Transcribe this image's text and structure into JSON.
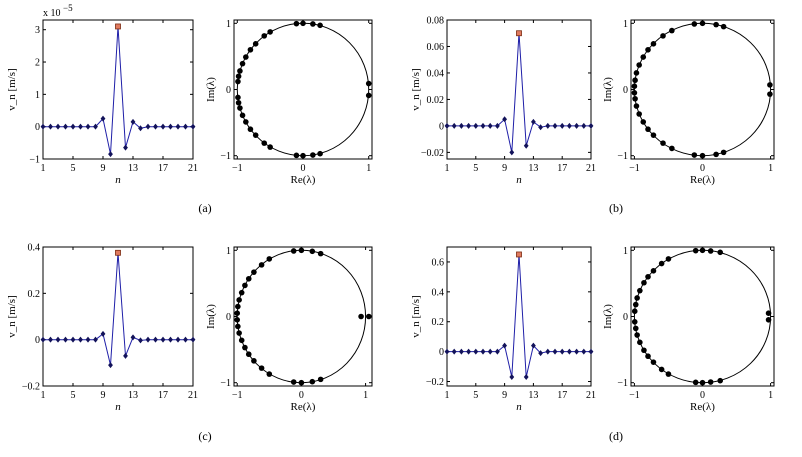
{
  "colors": {
    "line": "#1f1fa8",
    "marker": "#12125a",
    "highlight_fill": "#e07a5f",
    "highlight_edge": "#7a2a10",
    "circle": "#000000",
    "eig": "#000000"
  },
  "chart_data": [
    {
      "panel": "(a)",
      "plots": [
        {
          "type": "line",
          "xlabel": "n",
          "ylabel": "v_n [m/s]",
          "exponent_label": "x 10",
          "exponent_sup": "−5",
          "xlim": [
            1,
            21
          ],
          "ylim": [
            -1,
            3.3
          ],
          "xticks": [
            1,
            5,
            9,
            13,
            17,
            21
          ],
          "yticks": [
            -1,
            0,
            1,
            2,
            3
          ],
          "ytick_labels": [
            "−1",
            "0",
            "1",
            "2",
            "3"
          ],
          "x": [
            1,
            2,
            3,
            4,
            5,
            6,
            7,
            8,
            9,
            10,
            11,
            12,
            13,
            14,
            15,
            16,
            17,
            18,
            19,
            20,
            21
          ],
          "y": [
            0,
            0,
            0,
            0,
            0,
            0,
            0,
            0,
            0.25,
            -0.85,
            3.1,
            -0.65,
            0.15,
            -0.05,
            0,
            0,
            0,
            0,
            0,
            0,
            0
          ],
          "highlight_index": 11
        },
        {
          "type": "scatter",
          "xlabel": "Re(λ)",
          "ylabel": "Im(λ)",
          "xlim": [
            -1.05,
            1.05
          ],
          "ylim": [
            -1.05,
            1.05
          ],
          "xticks": [
            -1,
            0,
            1
          ],
          "yticks": [
            -1,
            0,
            1
          ],
          "tick_labels": [
            "−1",
            "0",
            "1"
          ],
          "unit_circle": true,
          "points": [
            [
              1.0,
              0.09
            ],
            [
              1.0,
              -0.09
            ],
            [
              0.26,
              0.97
            ],
            [
              0.26,
              -0.97
            ],
            [
              0.15,
              0.99
            ],
            [
              0.15,
              -0.99
            ],
            [
              0.0,
              1.0
            ],
            [
              0.0,
              -1.0
            ],
            [
              -0.1,
              0.995
            ],
            [
              -0.1,
              -0.995
            ],
            [
              -0.5,
              0.87
            ],
            [
              -0.5,
              -0.87
            ],
            [
              -0.59,
              0.81
            ],
            [
              -0.59,
              -0.81
            ],
            [
              -0.72,
              0.69
            ],
            [
              -0.72,
              -0.69
            ],
            [
              -0.8,
              0.6
            ],
            [
              -0.8,
              -0.6
            ],
            [
              -0.87,
              0.49
            ],
            [
              -0.87,
              -0.49
            ],
            [
              -0.92,
              0.39
            ],
            [
              -0.92,
              -0.39
            ],
            [
              -0.96,
              0.28
            ],
            [
              -0.96,
              -0.28
            ],
            [
              -0.98,
              0.2
            ],
            [
              -0.98,
              -0.2
            ],
            [
              -0.99,
              0.12
            ],
            [
              -0.99,
              -0.12
            ]
          ]
        }
      ]
    },
    {
      "panel": "(b)",
      "plots": [
        {
          "type": "line",
          "xlabel": "n",
          "ylabel": "v_n [m/s]",
          "xlim": [
            1,
            21
          ],
          "ylim": [
            -0.025,
            0.08
          ],
          "xticks": [
            1,
            5,
            9,
            13,
            17,
            21
          ],
          "yticks": [
            -0.02,
            0,
            0.02,
            0.04,
            0.06,
            0.08
          ],
          "ytick_labels": [
            "−0.02",
            "0",
            "0.02",
            "0.04",
            "0.06",
            "0.08"
          ],
          "x": [
            1,
            2,
            3,
            4,
            5,
            6,
            7,
            8,
            9,
            10,
            11,
            12,
            13,
            14,
            15,
            16,
            17,
            18,
            19,
            20,
            21
          ],
          "y": [
            0,
            0,
            0,
            0,
            0,
            0,
            0,
            0,
            0.005,
            -0.02,
            0.07,
            -0.015,
            0.003,
            -0.001,
            0,
            0,
            0,
            0,
            0,
            0,
            0
          ],
          "highlight_index": 11
        },
        {
          "type": "scatter",
          "xlabel": "Re(λ)",
          "ylabel": "Im(λ)",
          "xlim": [
            -1.05,
            1.05
          ],
          "ylim": [
            -1.05,
            1.05
          ],
          "xticks": [
            -1,
            0,
            1
          ],
          "yticks": [
            -1,
            0,
            1
          ],
          "tick_labels": [
            "−1",
            "0",
            "1"
          ],
          "unit_circle": true,
          "points": [
            [
              0.99,
              0.07
            ],
            [
              0.99,
              -0.07
            ],
            [
              0.31,
              0.95
            ],
            [
              0.31,
              -0.95
            ],
            [
              0.2,
              0.98
            ],
            [
              0.2,
              -0.98
            ],
            [
              0.0,
              1.0
            ],
            [
              0.0,
              -1.0
            ],
            [
              -0.12,
              0.99
            ],
            [
              -0.12,
              -0.99
            ],
            [
              -0.45,
              0.89
            ],
            [
              -0.45,
              -0.89
            ],
            [
              -0.58,
              0.81
            ],
            [
              -0.58,
              -0.81
            ],
            [
              -0.72,
              0.69
            ],
            [
              -0.72,
              -0.69
            ],
            [
              -0.8,
              0.6
            ],
            [
              -0.8,
              -0.6
            ],
            [
              -0.87,
              0.49
            ],
            [
              -0.87,
              -0.49
            ],
            [
              -0.93,
              0.37
            ],
            [
              -0.93,
              -0.37
            ],
            [
              -0.97,
              0.25
            ],
            [
              -0.97,
              -0.25
            ],
            [
              -0.99,
              0.14
            ],
            [
              -0.99,
              -0.14
            ],
            [
              -1.0,
              0.05
            ],
            [
              -1.0,
              -0.05
            ]
          ]
        }
      ]
    },
    {
      "panel": "(c)",
      "plots": [
        {
          "type": "line",
          "xlabel": "n",
          "ylabel": "v_n [m/s]",
          "xlim": [
            1,
            21
          ],
          "ylim": [
            -0.2,
            0.4
          ],
          "xticks": [
            1,
            5,
            9,
            13,
            17,
            21
          ],
          "yticks": [
            -0.2,
            0,
            0.2,
            0.4
          ],
          "ytick_labels": [
            "−0.2",
            "0",
            "0.2",
            "0.4"
          ],
          "x": [
            1,
            2,
            3,
            4,
            5,
            6,
            7,
            8,
            9,
            10,
            11,
            12,
            13,
            14,
            15,
            16,
            17,
            18,
            19,
            20,
            21
          ],
          "y": [
            0,
            0,
            0,
            0,
            0,
            0,
            0,
            0,
            0.025,
            -0.11,
            0.375,
            -0.07,
            0.01,
            -0.003,
            0,
            0,
            0,
            0,
            0,
            0,
            0
          ],
          "highlight_index": 11
        },
        {
          "type": "scatter",
          "xlabel": "Re(λ)",
          "ylabel": "Im(λ)",
          "xlim": [
            -1.05,
            1.1
          ],
          "ylim": [
            -1.05,
            1.05
          ],
          "xticks": [
            -1,
            0,
            1
          ],
          "yticks": [
            -1,
            0,
            1
          ],
          "tick_labels": [
            "−1",
            "0",
            "1"
          ],
          "unit_circle": true,
          "points": [
            [
              0.93,
              0.0
            ],
            [
              1.05,
              0.0
            ],
            [
              0.3,
              0.95
            ],
            [
              0.3,
              -0.95
            ],
            [
              0.17,
              0.985
            ],
            [
              0.17,
              -0.985
            ],
            [
              0.0,
              1.0
            ],
            [
              0.0,
              -1.0
            ],
            [
              -0.12,
              0.99
            ],
            [
              -0.12,
              -0.99
            ],
            [
              -0.5,
              0.87
            ],
            [
              -0.5,
              -0.87
            ],
            [
              -0.62,
              0.78
            ],
            [
              -0.62,
              -0.78
            ],
            [
              -0.74,
              0.67
            ],
            [
              -0.74,
              -0.67
            ],
            [
              -0.82,
              0.57
            ],
            [
              -0.82,
              -0.57
            ],
            [
              -0.88,
              0.47
            ],
            [
              -0.88,
              -0.47
            ],
            [
              -0.93,
              0.36
            ],
            [
              -0.93,
              -0.36
            ],
            [
              -0.97,
              0.25
            ],
            [
              -0.97,
              -0.25
            ],
            [
              -0.99,
              0.15
            ],
            [
              -0.99,
              -0.15
            ],
            [
              -1.0,
              0.05
            ],
            [
              -1.0,
              -0.05
            ]
          ]
        }
      ]
    },
    {
      "panel": "(d)",
      "plots": [
        {
          "type": "line",
          "xlabel": "n",
          "ylabel": "v_n [m/s]",
          "xlim": [
            1,
            21
          ],
          "ylim": [
            -0.23,
            0.7
          ],
          "xticks": [
            1,
            5,
            9,
            13,
            17,
            21
          ],
          "yticks": [
            -0.2,
            0,
            0.2,
            0.4,
            0.6
          ],
          "ytick_labels": [
            "−0.2",
            "0",
            "0.2",
            "0.4",
            "0.6"
          ],
          "x": [
            1,
            2,
            3,
            4,
            5,
            6,
            7,
            8,
            9,
            10,
            11,
            12,
            13,
            14,
            15,
            16,
            17,
            18,
            19,
            20,
            21
          ],
          "y": [
            0,
            0,
            0,
            0,
            0,
            0,
            0,
            0,
            0.04,
            -0.17,
            0.65,
            -0.17,
            0.04,
            -0.01,
            0,
            0,
            0,
            0,
            0,
            0,
            0
          ],
          "highlight_index": 11
        },
        {
          "type": "scatter",
          "xlabel": "Re(λ)",
          "ylabel": "Im(λ)",
          "xlim": [
            -1.05,
            1.05
          ],
          "ylim": [
            -1.05,
            1.05
          ],
          "xticks": [
            -1,
            0,
            1
          ],
          "yticks": [
            -1,
            0,
            1
          ],
          "tick_labels": [
            "−1",
            "0",
            "1"
          ],
          "unit_circle": true,
          "points": [
            [
              0.97,
              0.05
            ],
            [
              0.97,
              -0.05
            ],
            [
              0.26,
              0.97
            ],
            [
              0.26,
              -0.97
            ],
            [
              0.12,
              0.99
            ],
            [
              0.12,
              -0.99
            ],
            [
              0.0,
              1.0
            ],
            [
              0.0,
              -1.0
            ],
            [
              -0.1,
              0.995
            ],
            [
              -0.1,
              -0.995
            ],
            [
              -0.5,
              0.87
            ],
            [
              -0.5,
              -0.87
            ],
            [
              -0.6,
              0.8
            ],
            [
              -0.6,
              -0.8
            ],
            [
              -0.72,
              0.69
            ],
            [
              -0.72,
              -0.69
            ],
            [
              -0.8,
              0.6
            ],
            [
              -0.8,
              -0.6
            ],
            [
              -0.86,
              0.51
            ],
            [
              -0.86,
              -0.51
            ],
            [
              -0.92,
              0.39
            ],
            [
              -0.92,
              -0.39
            ],
            [
              -0.96,
              0.28
            ],
            [
              -0.96,
              -0.28
            ],
            [
              -0.98,
              0.18
            ],
            [
              -0.98,
              -0.18
            ],
            [
              -0.995,
              0.08
            ],
            [
              -0.995,
              -0.08
            ]
          ]
        }
      ]
    }
  ]
}
